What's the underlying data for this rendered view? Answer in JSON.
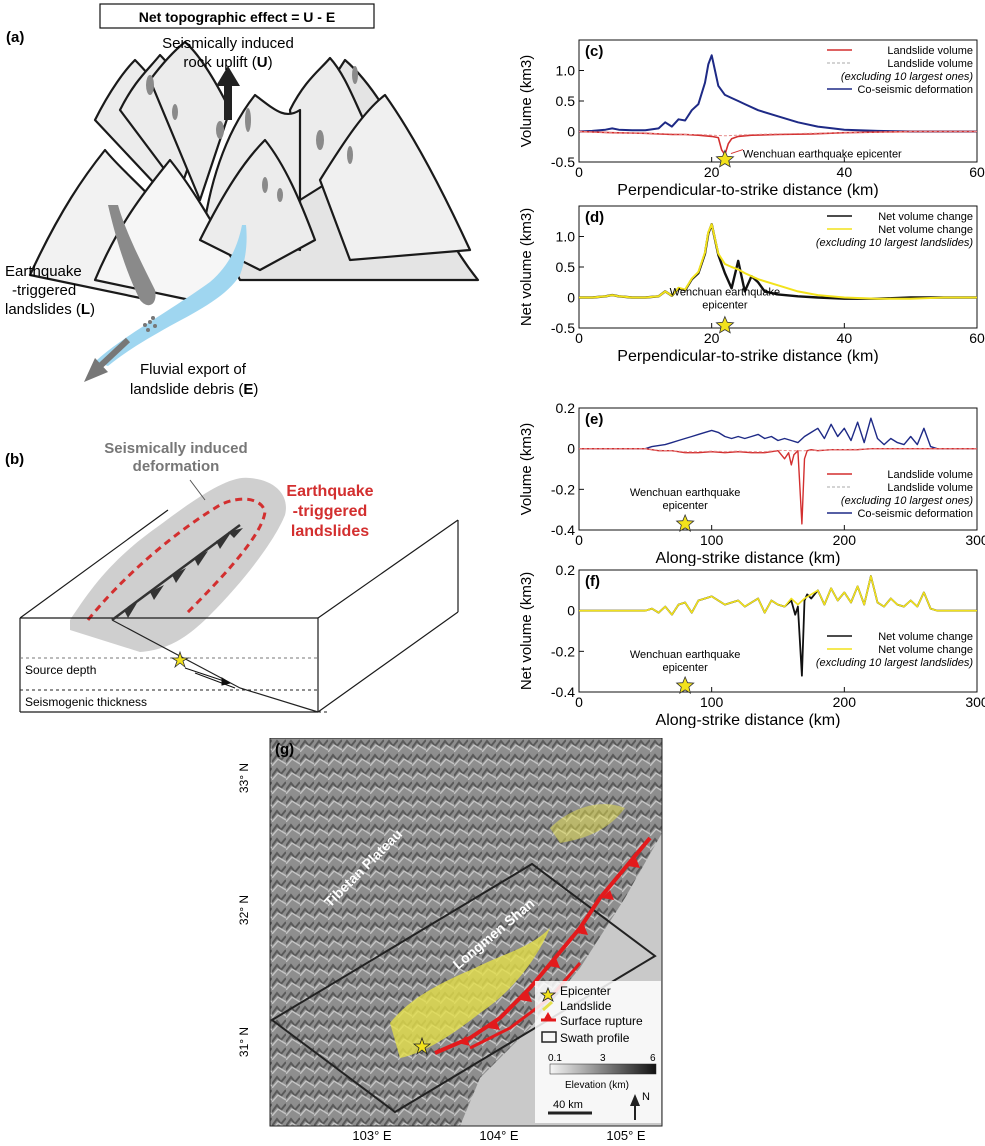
{
  "panel_a": {
    "label": "(a)",
    "box_title": "Net topographic effect = U - E",
    "uplift_label_line1": "Seismically induced",
    "uplift_label_line2": "rock uplift (",
    "uplift_symbol": "U",
    "landslide_line1": "Earthquake",
    "landslide_line2": "-triggered",
    "landslide_line3": "landslides (",
    "landslide_symbol": "L",
    "export_line1": "Fluvial export of",
    "export_line2": "landslide debris (",
    "export_symbol": "E",
    "close_paren": ")"
  },
  "panel_b": {
    "label": "(b)",
    "deformation_line1": "Seismically induced",
    "deformation_line2": "deformation",
    "landslides_line1": "Earthquake",
    "landslides_line2": "-triggered",
    "landslides_line3": "landslides",
    "source_depth": "Source  depth",
    "seismogenic": "Seismogenic thickness"
  },
  "colors": {
    "landslide_red": "#d32f2f",
    "coseismic_blue": "#1e2a86",
    "net_black": "#111111",
    "net_yellow": "#f2e21c",
    "river_blue": "#9fd6f0",
    "mountain_fill": "#ececec",
    "deformation_gray": "#cfcfcf"
  },
  "chart_data": [
    {
      "panel": "(c)",
      "type": "line",
      "xlabel": "Perpendicular-to-strike distance (km)",
      "ylabel": "Volume (km3)",
      "xlim": [
        0,
        60
      ],
      "ylim": [
        -0.5,
        1.5
      ],
      "xticks": [
        "0",
        "20",
        "40",
        "60"
      ],
      "yticks": [
        "-0.5",
        "0",
        "0.5",
        "1.0"
      ],
      "annotation": "Wenchuan earthquake  epicenter",
      "epicenter": {
        "x": 22,
        "y": -0.46
      },
      "legend": [
        "Landslide volume",
        "Landslide volume",
        "(excluding 10 largest ones)",
        "Co-seismic deformation"
      ],
      "series": [
        {
          "name": "Co-seismic deformation",
          "x": [
            0,
            2,
            4,
            5,
            6,
            8,
            10,
            12,
            13,
            14,
            15,
            16,
            17,
            18,
            19,
            19.5,
            20,
            20.5,
            21,
            22,
            23,
            24,
            25,
            27,
            30,
            33,
            36,
            40,
            45,
            50,
            55,
            60
          ],
          "y": [
            0,
            0.01,
            0.03,
            0.05,
            0.03,
            0.02,
            0.02,
            0.05,
            0.15,
            0.08,
            0.2,
            0.18,
            0.35,
            0.45,
            0.8,
            1.1,
            1.25,
            1.0,
            0.75,
            0.6,
            0.55,
            0.5,
            0.45,
            0.35,
            0.25,
            0.15,
            0.08,
            0.03,
            0.01,
            0,
            0,
            0
          ]
        },
        {
          "name": "Landslide volume",
          "x": [
            0,
            5,
            10,
            14,
            16,
            18,
            20,
            21,
            21.5,
            22,
            22.5,
            23,
            24,
            26,
            30,
            35,
            40,
            45,
            50,
            60
          ],
          "y": [
            0,
            -0.02,
            -0.03,
            -0.05,
            -0.05,
            -0.06,
            -0.08,
            -0.1,
            -0.3,
            -0.38,
            -0.2,
            -0.12,
            -0.08,
            -0.06,
            -0.05,
            -0.04,
            -0.02,
            -0.01,
            0,
            0
          ]
        },
        {
          "name": "Landslide volume (excluding 10 largest ones)",
          "x": [
            0,
            5,
            10,
            14,
            16,
            18,
            20,
            22,
            24,
            26,
            30,
            35,
            40,
            45,
            50,
            60
          ],
          "y": [
            0,
            -0.02,
            -0.03,
            -0.04,
            -0.05,
            -0.05,
            -0.06,
            -0.07,
            -0.06,
            -0.05,
            -0.04,
            -0.03,
            -0.02,
            -0.01,
            0,
            0
          ]
        }
      ]
    },
    {
      "panel": "(d)",
      "type": "line",
      "xlabel": "Perpendicular-to-strike distance (km)",
      "ylabel": "Net volume (km3)",
      "xlim": [
        0,
        60
      ],
      "ylim": [
        -0.5,
        1.5
      ],
      "xticks": [
        "0",
        "20",
        "40",
        "60"
      ],
      "yticks": [
        "-0.5",
        "0",
        "0.5",
        "1.0"
      ],
      "annotation_line1": "Wenchuan earthquake",
      "annotation_line2": "epicenter",
      "epicenter": {
        "x": 22,
        "y": -0.46
      },
      "legend": [
        "Net volume change",
        "Net volume change",
        "(excluding 10 largest landslides)"
      ],
      "series": [
        {
          "name": "Net volume change",
          "x": [
            0,
            2,
            4,
            5,
            6,
            8,
            10,
            12,
            13,
            14,
            15,
            16,
            17,
            18,
            19,
            19.5,
            20,
            20.5,
            21,
            22,
            23,
            24,
            25,
            26,
            27,
            28,
            30,
            33,
            36,
            40,
            45,
            50,
            55,
            60
          ],
          "y": [
            0,
            0,
            0.02,
            0.04,
            0.02,
            0,
            0,
            0.02,
            0.1,
            0.03,
            0.15,
            0.12,
            0.3,
            0.4,
            0.72,
            1.05,
            1.2,
            0.95,
            0.7,
            0.4,
            0.15,
            0.6,
            0.1,
            0.35,
            0.25,
            0.1,
            0.05,
            0.02,
            0,
            -0.02,
            -0.02,
            0,
            0,
            0
          ]
        },
        {
          "name": "Net volume change (excluding 10 largest landslides)",
          "x": [
            0,
            2,
            4,
            5,
            6,
            8,
            10,
            12,
            13,
            14,
            15,
            16,
            17,
            18,
            19,
            19.5,
            20,
            20.5,
            21,
            22,
            23,
            24,
            25,
            27,
            30,
            33,
            36,
            40,
            45,
            50,
            55,
            60
          ],
          "y": [
            0,
            0,
            0.02,
            0.04,
            0.02,
            0,
            0,
            0.02,
            0.1,
            0.03,
            0.16,
            0.13,
            0.31,
            0.42,
            0.74,
            1.07,
            1.2,
            0.96,
            0.72,
            0.55,
            0.5,
            0.46,
            0.4,
            0.3,
            0.2,
            0.1,
            0.04,
            0,
            -0.02,
            -0.02,
            0,
            0
          ]
        }
      ]
    },
    {
      "panel": "(e)",
      "type": "line",
      "xlabel": "Along-strike distance (km)",
      "ylabel": "Volume (km3)",
      "xlim": [
        0,
        300
      ],
      "ylim": [
        -0.4,
        0.2
      ],
      "xticks": [
        "0",
        "100",
        "200",
        "300"
      ],
      "yticks": [
        "-0.4",
        "-0.2",
        "0",
        "0.2"
      ],
      "annotation_line1": "Wenchuan earthquake",
      "annotation_line2": "epicenter",
      "epicenter": {
        "x": 80,
        "y": -0.37
      },
      "legend": [
        "Landslide volume",
        "Landslide volume",
        "(excluding 10 largest ones)",
        "Co-seismic deformation"
      ],
      "series": [
        {
          "name": "Co-seismic deformation",
          "x": [
            0,
            50,
            55,
            60,
            65,
            70,
            75,
            80,
            85,
            90,
            95,
            100,
            105,
            110,
            115,
            120,
            125,
            130,
            135,
            140,
            145,
            150,
            155,
            160,
            165,
            170,
            175,
            180,
            185,
            190,
            195,
            200,
            205,
            210,
            215,
            220,
            225,
            230,
            235,
            240,
            245,
            250,
            255,
            260,
            265,
            270,
            275,
            300
          ],
          "y": [
            0,
            0,
            0.01,
            0.015,
            0.02,
            0.03,
            0.04,
            0.05,
            0.06,
            0.07,
            0.08,
            0.09,
            0.08,
            0.06,
            0.05,
            0.06,
            0.05,
            0.06,
            0.07,
            0.05,
            0.06,
            0.04,
            0.05,
            0.04,
            0.03,
            0.06,
            0.08,
            0.1,
            0.05,
            0.12,
            0.06,
            0.1,
            0.04,
            0.13,
            0.03,
            0.15,
            0.05,
            0.02,
            0.05,
            0.03,
            0.02,
            0.06,
            0.02,
            0.1,
            0.01,
            0,
            0,
            0
          ]
        },
        {
          "name": "Landslide volume",
          "x": [
            0,
            50,
            60,
            70,
            80,
            90,
            100,
            110,
            120,
            130,
            140,
            150,
            155,
            158,
            160,
            162,
            165,
            168,
            170,
            172,
            175,
            180,
            190,
            200,
            210,
            220,
            230,
            240,
            300
          ],
          "y": [
            0,
            0,
            -0.01,
            -0.01,
            -0.02,
            -0.02,
            -0.015,
            -0.02,
            -0.015,
            -0.02,
            -0.02,
            -0.01,
            -0.05,
            -0.02,
            -0.08,
            -0.03,
            -0.01,
            -0.37,
            -0.05,
            -0.01,
            -0.005,
            -0.01,
            -0.005,
            -0.005,
            -0.005,
            0,
            0,
            0,
            0
          ]
        },
        {
          "name": "Landslide volume (excluding 10 largest ones)",
          "x": [
            0,
            50,
            60,
            70,
            80,
            90,
            100,
            110,
            120,
            130,
            140,
            150,
            160,
            170,
            180,
            190,
            200,
            210,
            220,
            230,
            300
          ],
          "y": [
            0,
            0,
            -0.008,
            -0.01,
            -0.015,
            -0.015,
            -0.012,
            -0.015,
            -0.012,
            -0.015,
            -0.015,
            -0.008,
            -0.01,
            -0.01,
            -0.008,
            -0.005,
            -0.004,
            -0.003,
            0,
            0,
            0
          ]
        }
      ]
    },
    {
      "panel": "(f)",
      "type": "line",
      "xlabel": "Along-strike distance (km)",
      "ylabel": "Net volume (km3)",
      "xlim": [
        0,
        300
      ],
      "ylim": [
        -0.4,
        0.2
      ],
      "xticks": [
        "0",
        "100",
        "200",
        "300"
      ],
      "yticks": [
        "-0.4",
        "-0.2",
        "0",
        "0.2"
      ],
      "annotation_line1": "Wenchuan earthquake",
      "annotation_line2": "epicenter",
      "epicenter": {
        "x": 80,
        "y": -0.37
      },
      "legend": [
        "Net volume change",
        "Net volume change",
        "(excluding 10 largest landslides)"
      ],
      "series": [
        {
          "name": "Net volume change",
          "x": [
            0,
            50,
            55,
            60,
            65,
            70,
            75,
            80,
            85,
            90,
            95,
            100,
            105,
            110,
            115,
            120,
            125,
            130,
            135,
            140,
            145,
            150,
            155,
            160,
            163,
            165,
            168,
            170,
            172,
            175,
            180,
            185,
            190,
            195,
            200,
            205,
            210,
            215,
            220,
            225,
            230,
            235,
            240,
            245,
            250,
            255,
            260,
            265,
            270,
            275,
            300
          ],
          "y": [
            0,
            0,
            0.01,
            -0.01,
            0.02,
            -0.02,
            0.03,
            0.04,
            -0.01,
            0.05,
            0.06,
            0.07,
            0.05,
            0.03,
            0.04,
            0.05,
            0.02,
            0.04,
            0.06,
            -0.01,
            0.05,
            0.03,
            0.02,
            0.05,
            -0.02,
            0.02,
            -0.32,
            0.05,
            0.08,
            0.06,
            0.1,
            0.03,
            0.11,
            0.05,
            0.09,
            0.04,
            0.12,
            0.03,
            0.17,
            0.04,
            0.02,
            0.06,
            0.03,
            0.02,
            0.05,
            0.02,
            0.09,
            0.01,
            0,
            0,
            0
          ]
        },
        {
          "name": "Net volume change (excluding 10 largest landslides)",
          "x": [
            0,
            50,
            55,
            60,
            65,
            70,
            75,
            80,
            85,
            90,
            95,
            100,
            105,
            110,
            115,
            120,
            125,
            130,
            135,
            140,
            145,
            150,
            155,
            160,
            165,
            170,
            175,
            180,
            185,
            190,
            195,
            200,
            205,
            210,
            215,
            220,
            225,
            230,
            235,
            240,
            245,
            250,
            255,
            260,
            265,
            270,
            275,
            300
          ],
          "y": [
            0,
            0,
            0.01,
            -0.01,
            0.02,
            -0.02,
            0.03,
            0.04,
            -0.01,
            0.05,
            0.06,
            0.07,
            0.05,
            0.03,
            0.04,
            0.05,
            0.02,
            0.04,
            0.06,
            -0.01,
            0.05,
            0.03,
            0.02,
            0.06,
            0.03,
            0.06,
            0.08,
            0.1,
            0.03,
            0.11,
            0.05,
            0.09,
            0.04,
            0.12,
            0.03,
            0.17,
            0.04,
            0.02,
            0.06,
            0.03,
            0.02,
            0.05,
            0.02,
            0.09,
            0.01,
            0,
            0,
            0
          ]
        }
      ]
    }
  ],
  "panel_g": {
    "label": "(g)",
    "region_label": "Tibetan Plateau",
    "range_label": "Longmen Shan",
    "lat_labels": [
      "33° N",
      "32° N",
      "31° N"
    ],
    "lon_labels": [
      "103° E",
      "104° E",
      "105° E"
    ],
    "legend": [
      "Epicenter",
      "Landslide",
      "Surface rupture",
      "Swath profile"
    ],
    "elevation_ticks": [
      "0.1",
      "3",
      "6"
    ],
    "elevation_caption": "Elevation (km)",
    "scale_bar": "40 km",
    "north": "N"
  }
}
